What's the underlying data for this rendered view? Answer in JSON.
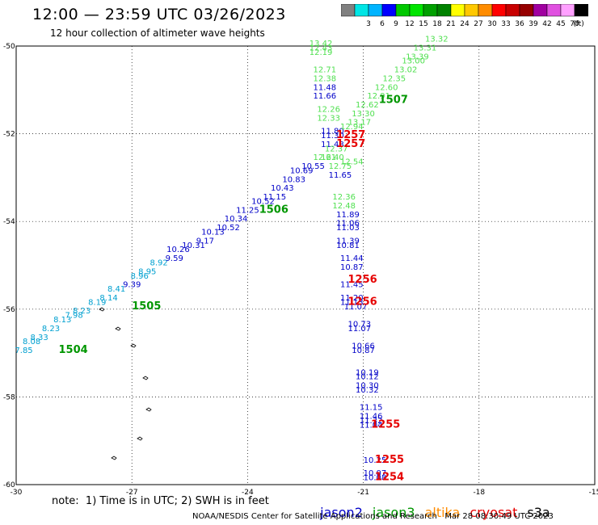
{
  "header": {
    "title": "12:00 — 23:59 UTC 03/26/2023",
    "subtitle": "12 hour collection of altimeter wave heights"
  },
  "legend": {
    "unit": "(ft)",
    "bins": [
      {
        "color": "#808080",
        "label": ""
      },
      {
        "color": "#00e5e5",
        "label": "3"
      },
      {
        "color": "#00b4ff",
        "label": "6"
      },
      {
        "color": "#0000ff",
        "label": "9"
      },
      {
        "color": "#00c800",
        "label": "12"
      },
      {
        "color": "#00e500",
        "label": "15"
      },
      {
        "color": "#00a000",
        "label": "18"
      },
      {
        "color": "#008200",
        "label": "21"
      },
      {
        "color": "#ffff00",
        "label": "24"
      },
      {
        "color": "#ffc800",
        "label": "27"
      },
      {
        "color": "#ff8c00",
        "label": "30"
      },
      {
        "color": "#ff0000",
        "label": "33"
      },
      {
        "color": "#c80000",
        "label": "36"
      },
      {
        "color": "#960000",
        "label": "39"
      },
      {
        "color": "#a000a0",
        "label": "42"
      },
      {
        "color": "#e050e0",
        "label": "45"
      },
      {
        "color": "#ffa0ff",
        "label": "70"
      },
      {
        "color": "#000000",
        "label": ""
      }
    ]
  },
  "map": {
    "lat_ticks": [
      "-50",
      "-52",
      "-54",
      "-56",
      "-58",
      "-60"
    ],
    "lon_ticks": [
      "-30",
      "-27",
      "-24",
      "-21",
      "-18",
      "-15"
    ],
    "lat_range": [
      -60,
      -50
    ],
    "lon_range": [
      -30,
      -15
    ],
    "grid": true,
    "colors": {
      "cyan": "#00a0d0",
      "blue": "#0000c8",
      "green": "#009600",
      "lightgreen": "#50e050",
      "red": "#e60000"
    },
    "passes": [
      {
        "label": "1504",
        "color": "green",
        "lon": -28.9,
        "lat": -57.0
      },
      {
        "label": "1505",
        "color": "green",
        "lon": -27.0,
        "lat": -56.0
      },
      {
        "label": "1506",
        "color": "green",
        "lon": -23.7,
        "lat": -53.8
      },
      {
        "label": "1507",
        "color": "green",
        "lon": -20.6,
        "lat": -51.3
      },
      {
        "label": "1257",
        "color": "red",
        "lon": -21.7,
        "lat": -52.1
      },
      {
        "label": "1257",
        "color": "red",
        "lon": -21.7,
        "lat": -52.3
      },
      {
        "label": "1256",
        "color": "red",
        "lon": -21.4,
        "lat": -55.4
      },
      {
        "label": "1256",
        "color": "red",
        "lon": -21.4,
        "lat": -55.9
      },
      {
        "label": "1255",
        "color": "red",
        "lon": -20.8,
        "lat": -58.7
      },
      {
        "label": "1255",
        "color": "red",
        "lon": -20.7,
        "lat": -59.5
      },
      {
        "label": "1254",
        "color": "red",
        "lon": -20.7,
        "lat": -59.9
      }
    ],
    "observations": [
      {
        "v": "7.85",
        "c": "cyan",
        "lon": -29.8,
        "lat": -57.0
      },
      {
        "v": "8.08",
        "c": "cyan",
        "lon": -29.6,
        "lat": -56.8
      },
      {
        "v": "8.33",
        "c": "cyan",
        "lon": -29.4,
        "lat": -56.7
      },
      {
        "v": "8.23",
        "c": "cyan",
        "lon": -29.1,
        "lat": -56.5
      },
      {
        "v": "8.13",
        "c": "cyan",
        "lon": -28.8,
        "lat": -56.3
      },
      {
        "v": "7.98",
        "c": "cyan",
        "lon": -28.5,
        "lat": -56.2
      },
      {
        "v": "8.23",
        "c": "cyan",
        "lon": -28.3,
        "lat": -56.1
      },
      {
        "v": "8.19",
        "c": "cyan",
        "lon": -27.9,
        "lat": -55.9
      },
      {
        "v": "8.14",
        "c": "cyan",
        "lon": -27.6,
        "lat": -55.8
      },
      {
        "v": "8.41",
        "c": "cyan",
        "lon": -27.4,
        "lat": -55.6
      },
      {
        "v": "9.39",
        "c": "blue",
        "lon": -27.0,
        "lat": -55.5
      },
      {
        "v": "8.96",
        "c": "cyan",
        "lon": -26.8,
        "lat": -55.3
      },
      {
        "v": "8.95",
        "c": "cyan",
        "lon": -26.6,
        "lat": -55.2
      },
      {
        "v": "8.92",
        "c": "cyan",
        "lon": -26.3,
        "lat": -55.0
      },
      {
        "v": "9.59",
        "c": "blue",
        "lon": -25.9,
        "lat": -54.9
      },
      {
        "v": "10.26",
        "c": "blue",
        "lon": -25.8,
        "lat": -54.7
      },
      {
        "v": "10.31",
        "c": "blue",
        "lon": -25.4,
        "lat": -54.6
      },
      {
        "v": "9.17",
        "c": "blue",
        "lon": -25.1,
        "lat": -54.5
      },
      {
        "v": "10.13",
        "c": "blue",
        "lon": -24.9,
        "lat": -54.3
      },
      {
        "v": "10.52",
        "c": "blue",
        "lon": -24.5,
        "lat": -54.2
      },
      {
        "v": "10.34",
        "c": "blue",
        "lon": -24.3,
        "lat": -54.0
      },
      {
        "v": "11.25",
        "c": "blue",
        "lon": -24.0,
        "lat": -53.8
      },
      {
        "v": "10.52",
        "c": "blue",
        "lon": -23.6,
        "lat": -53.6
      },
      {
        "v": "11.15",
        "c": "blue",
        "lon": -23.3,
        "lat": -53.5
      },
      {
        "v": "10.43",
        "c": "blue",
        "lon": -23.1,
        "lat": -53.3
      },
      {
        "v": "10.83",
        "c": "blue",
        "lon": -22.8,
        "lat": -53.1
      },
      {
        "v": "10.69",
        "c": "blue",
        "lon": -22.6,
        "lat": -52.9
      },
      {
        "v": "10.55",
        "c": "blue",
        "lon": -22.3,
        "lat": -52.8
      },
      {
        "v": "13.42",
        "c": "lightgreen",
        "lon": -22.1,
        "lat": -50.0
      },
      {
        "v": "12.43",
        "c": "lightgreen",
        "lon": -22.1,
        "lat": -50.1
      },
      {
        "v": "12.19",
        "c": "lightgreen",
        "lon": -22.1,
        "lat": -50.2
      },
      {
        "v": "12.71",
        "c": "lightgreen",
        "lon": -22.0,
        "lat": -50.6
      },
      {
        "v": "12.38",
        "c": "lightgreen",
        "lon": -22.0,
        "lat": -50.8
      },
      {
        "v": "11.48",
        "c": "blue",
        "lon": -22.0,
        "lat": -51.0
      },
      {
        "v": "11.66",
        "c": "blue",
        "lon": -22.0,
        "lat": -51.2
      },
      {
        "v": "12.26",
        "c": "lightgreen",
        "lon": -21.9,
        "lat": -51.5
      },
      {
        "v": "12.33",
        "c": "lightgreen",
        "lon": -21.9,
        "lat": -51.7
      },
      {
        "v": "11.80",
        "c": "blue",
        "lon": -21.8,
        "lat": -52.0
      },
      {
        "v": "11.30",
        "c": "blue",
        "lon": -21.8,
        "lat": -52.1
      },
      {
        "v": "11.48",
        "c": "blue",
        "lon": -21.8,
        "lat": -52.3
      },
      {
        "v": "12.37",
        "c": "lightgreen",
        "lon": -21.7,
        "lat": -52.4
      },
      {
        "v": "12.40",
        "c": "lightgreen",
        "lon": -21.8,
        "lat": -52.6
      },
      {
        "v": "12.75",
        "c": "lightgreen",
        "lon": -21.6,
        "lat": -52.8
      },
      {
        "v": "11.65",
        "c": "blue",
        "lon": -21.6,
        "lat": -53.0
      },
      {
        "v": "12.36",
        "c": "lightgreen",
        "lon": -21.5,
        "lat": -53.5
      },
      {
        "v": "12.48",
        "c": "lightgreen",
        "lon": -21.5,
        "lat": -53.7
      },
      {
        "v": "11.89",
        "c": "blue",
        "lon": -21.4,
        "lat": -53.9
      },
      {
        "v": "11.06",
        "c": "blue",
        "lon": -21.4,
        "lat": -54.1
      },
      {
        "v": "11.03",
        "c": "blue",
        "lon": -21.4,
        "lat": -54.2
      },
      {
        "v": "11.39",
        "c": "blue",
        "lon": -21.4,
        "lat": -54.5
      },
      {
        "v": "10.81",
        "c": "blue",
        "lon": -21.4,
        "lat": -54.6
      },
      {
        "v": "11.44",
        "c": "blue",
        "lon": -21.3,
        "lat": -54.9
      },
      {
        "v": "10.87",
        "c": "blue",
        "lon": -21.3,
        "lat": -55.1
      },
      {
        "v": "11.45",
        "c": "blue",
        "lon": -21.3,
        "lat": -55.5
      },
      {
        "v": "11.20",
        "c": "blue",
        "lon": -21.3,
        "lat": -55.8
      },
      {
        "v": "11.13",
        "c": "blue",
        "lon": -21.3,
        "lat": -55.9
      },
      {
        "v": "11.07",
        "c": "blue",
        "lon": -21.2,
        "lat": -56.0
      },
      {
        "v": "10.73",
        "c": "blue",
        "lon": -21.1,
        "lat": -56.4
      },
      {
        "v": "11.07",
        "c": "blue",
        "lon": -21.1,
        "lat": -56.5
      },
      {
        "v": "10.66",
        "c": "blue",
        "lon": -21.0,
        "lat": -56.9
      },
      {
        "v": "10.87",
        "c": "blue",
        "lon": -21.0,
        "lat": -57.0
      },
      {
        "v": "10.19",
        "c": "blue",
        "lon": -20.9,
        "lat": -57.5
      },
      {
        "v": "10.12",
        "c": "blue",
        "lon": -20.9,
        "lat": -57.6
      },
      {
        "v": "10.30",
        "c": "blue",
        "lon": -20.9,
        "lat": -57.8
      },
      {
        "v": "10.32",
        "c": "blue",
        "lon": -20.9,
        "lat": -57.9
      },
      {
        "v": "11.15",
        "c": "blue",
        "lon": -20.8,
        "lat": -58.3
      },
      {
        "v": "11.46",
        "c": "blue",
        "lon": -20.8,
        "lat": -58.5
      },
      {
        "v": "11.32",
        "c": "blue",
        "lon": -20.8,
        "lat": -58.6
      },
      {
        "v": "11.04",
        "c": "blue",
        "lon": -20.8,
        "lat": -58.7
      },
      {
        "v": "10.25",
        "c": "blue",
        "lon": -20.7,
        "lat": -59.5
      },
      {
        "v": "10.07",
        "c": "blue",
        "lon": -20.7,
        "lat": -59.8
      },
      {
        "v": "10.08",
        "c": "blue",
        "lon": -20.7,
        "lat": -59.9
      },
      {
        "v": "12.61",
        "c": "lightgreen",
        "lon": -22.0,
        "lat": -52.6
      },
      {
        "v": "12.54",
        "c": "lightgreen",
        "lon": -21.3,
        "lat": -52.7
      },
      {
        "v": "12.94",
        "c": "lightgreen",
        "lon": -21.3,
        "lat": -51.9
      },
      {
        "v": "13.17",
        "c": "lightgreen",
        "lon": -21.1,
        "lat": -51.8
      },
      {
        "v": "13.30",
        "c": "lightgreen",
        "lon": -21.0,
        "lat": -51.6
      },
      {
        "v": "12.62",
        "c": "lightgreen",
        "lon": -20.9,
        "lat": -51.4
      },
      {
        "v": "12.91",
        "c": "lightgreen",
        "lon": -20.6,
        "lat": -51.2
      },
      {
        "v": "12.60",
        "c": "lightgreen",
        "lon": -20.4,
        "lat": -51.0
      },
      {
        "v": "12.35",
        "c": "lightgreen",
        "lon": -20.2,
        "lat": -50.8
      },
      {
        "v": "13.02",
        "c": "lightgreen",
        "lon": -19.9,
        "lat": -50.6
      },
      {
        "v": "13.00",
        "c": "lightgreen",
        "lon": -19.7,
        "lat": -50.4
      },
      {
        "v": "13.39",
        "c": "lightgreen",
        "lon": -19.6,
        "lat": -50.3
      },
      {
        "v": "13.31",
        "c": "lightgreen",
        "lon": -19.4,
        "lat": -50.1
      },
      {
        "v": "13.32",
        "c": "lightgreen",
        "lon": -19.1,
        "lat": -49.9
      }
    ]
  },
  "footer": {
    "note": "note:  1) Time is in UTC; 2) SWH is in feet",
    "satellites": [
      {
        "name": "jason2",
        "color": "#0000c8"
      },
      {
        "name": "jason3",
        "color": "#009600"
      },
      {
        "name": "altika",
        "color": "#ff8c00"
      },
      {
        "name": "cryosat",
        "color": "#e60000"
      },
      {
        "name": "s3a",
        "color": "#000000"
      }
    ],
    "credit": "NOAA/NESDIS Center for Satellite Applications and Research   Mar 28 08:30:49 UTC 2023"
  }
}
